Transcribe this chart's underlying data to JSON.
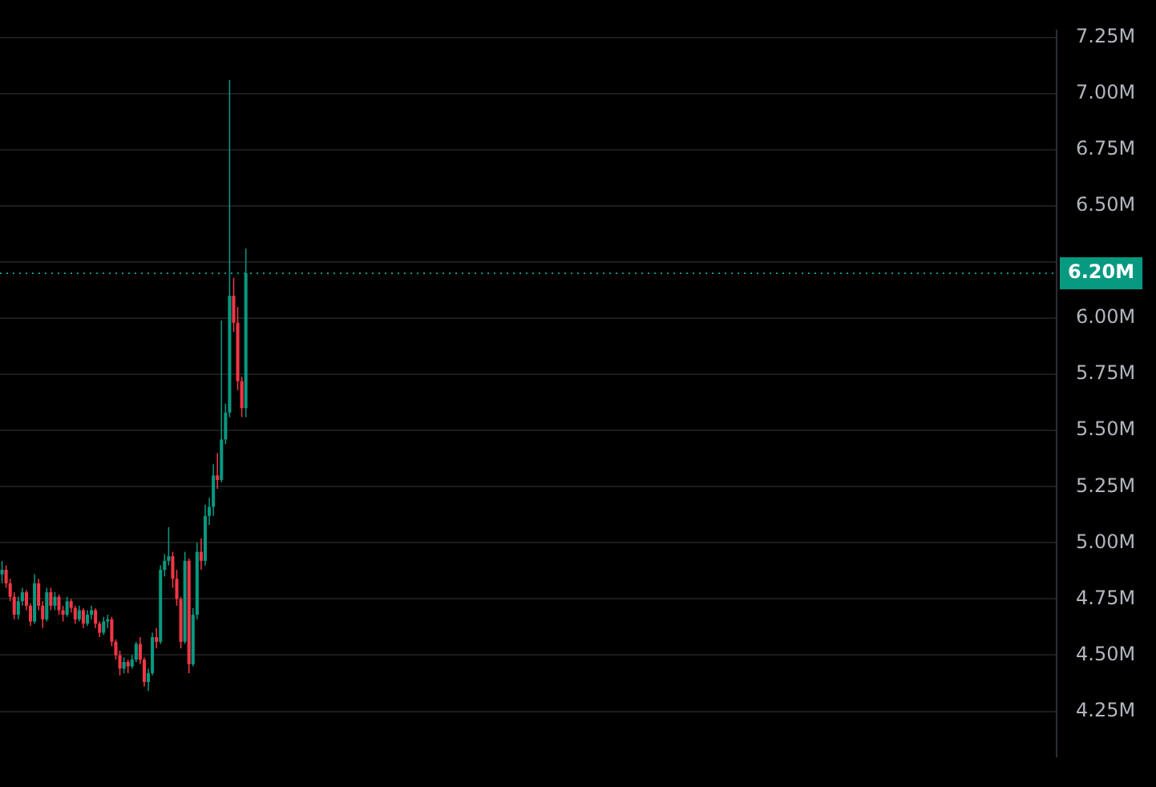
{
  "chart_data": {
    "type": "candlestick",
    "categories": [
      null,
      null,
      null,
      null,
      null,
      null,
      null,
      null,
      null,
      null,
      null,
      null,
      null,
      null,
      null,
      null,
      null,
      null,
      null,
      null,
      null,
      null,
      null,
      null,
      null,
      null,
      null,
      null,
      null,
      null,
      null,
      null,
      null,
      null,
      null,
      null,
      null,
      null,
      null,
      null,
      null,
      null,
      null,
      null,
      null,
      null,
      null,
      null,
      null,
      null,
      null,
      null,
      null,
      null,
      null,
      null,
      null,
      null,
      null,
      null,
      null,
      null,
      null,
      null,
      null,
      null,
      null,
      null,
      null,
      null,
      null,
      null,
      null,
      null,
      null,
      null,
      null,
      null,
      null,
      null,
      null,
      null,
      null,
      null,
      null,
      null,
      null,
      null,
      null,
      null,
      null,
      null,
      null,
      null,
      null,
      null,
      null,
      null,
      null,
      null,
      null,
      null,
      null,
      null,
      null,
      null,
      null,
      null,
      null,
      null,
      null,
      null,
      null,
      null,
      null,
      null,
      null,
      null,
      null,
      null,
      null,
      null,
      null,
      null,
      null,
      null,
      null,
      null,
      null,
      null,
      null,
      null,
      null,
      null,
      null,
      null,
      null,
      null,
      null,
      null,
      null,
      null,
      null,
      null,
      null,
      null,
      null,
      null,
      null,
      null,
      null,
      null,
      null,
      null,
      null,
      null,
      null,
      null,
      null,
      null,
      null,
      null,
      null,
      null,
      null,
      null,
      null,
      null,
      null,
      null,
      null,
      null,
      null,
      null,
      null,
      null,
      null,
      null,
      null,
      null,
      null,
      null,
      null,
      null,
      null,
      null,
      null,
      null,
      null,
      null,
      null,
      null,
      null,
      null,
      null,
      null,
      null,
      null,
      null,
      null,
      null,
      null,
      null,
      null,
      null,
      null,
      null,
      null,
      null,
      null,
      null,
      null,
      null,
      null,
      null,
      null,
      null,
      null,
      null,
      null,
      null,
      null,
      null,
      null,
      null,
      null,
      null,
      null,
      null,
      null,
      null,
      null,
      null,
      null,
      null,
      null,
      null,
      null,
      null,
      null,
      null,
      null,
      null,
      null,
      null,
      null,
      null,
      null,
      null,
      null,
      null,
      null,
      null,
      null,
      null,
      null,
      null,
      null,
      null,
      null
    ],
    "ohlc": [
      [
        4.86,
        4.92,
        4.82,
        4.88
      ],
      [
        4.88,
        4.9,
        4.8,
        4.82
      ],
      [
        4.82,
        4.84,
        4.74,
        4.76
      ],
      [
        4.76,
        4.78,
        4.66,
        4.68
      ],
      [
        4.68,
        4.76,
        4.66,
        4.74
      ],
      [
        4.74,
        4.8,
        4.72,
        4.78
      ],
      [
        4.78,
        4.79,
        4.7,
        4.72
      ],
      [
        4.72,
        4.73,
        4.63,
        4.65
      ],
      [
        4.65,
        4.86,
        4.64,
        4.82
      ],
      [
        4.82,
        4.84,
        4.7,
        4.72
      ],
      [
        4.72,
        4.74,
        4.62,
        4.66
      ],
      [
        4.66,
        4.8,
        4.65,
        4.78
      ],
      [
        4.78,
        4.8,
        4.7,
        4.72
      ],
      [
        4.72,
        4.78,
        4.7,
        4.76
      ],
      [
        4.76,
        4.77,
        4.68,
        4.7
      ],
      [
        4.7,
        4.72,
        4.65,
        4.68
      ],
      [
        4.68,
        4.76,
        4.67,
        4.74
      ],
      [
        4.74,
        4.75,
        4.69,
        4.71
      ],
      [
        4.71,
        4.72,
        4.64,
        4.66
      ],
      [
        4.66,
        4.72,
        4.65,
        4.7
      ],
      [
        4.7,
        4.71,
        4.62,
        4.64
      ],
      [
        4.64,
        4.7,
        4.63,
        4.68
      ],
      [
        4.68,
        4.72,
        4.66,
        4.7
      ],
      [
        4.7,
        4.71,
        4.62,
        4.64
      ],
      [
        4.64,
        4.65,
        4.58,
        4.6
      ],
      [
        4.6,
        4.67,
        4.59,
        4.65
      ],
      [
        4.65,
        4.68,
        4.62,
        4.66
      ],
      [
        4.66,
        4.67,
        4.54,
        4.56
      ],
      [
        4.56,
        4.57,
        4.48,
        4.5
      ],
      [
        4.5,
        4.52,
        4.41,
        4.44
      ],
      [
        4.44,
        4.49,
        4.42,
        4.47
      ],
      [
        4.47,
        4.48,
        4.42,
        4.45
      ],
      [
        4.45,
        4.5,
        4.44,
        4.48
      ],
      [
        4.48,
        4.56,
        4.47,
        4.55
      ],
      [
        4.55,
        4.58,
        4.46,
        4.48
      ],
      [
        4.48,
        4.49,
        4.36,
        4.38
      ],
      [
        4.38,
        4.44,
        4.34,
        4.42
      ],
      [
        4.42,
        4.6,
        4.41,
        4.58
      ],
      [
        4.58,
        4.62,
        4.53,
        4.56
      ],
      [
        4.56,
        4.9,
        4.55,
        4.88
      ],
      [
        4.88,
        4.95,
        4.85,
        4.92
      ],
      [
        4.92,
        5.07,
        4.9,
        4.94
      ],
      [
        4.94,
        4.96,
        4.8,
        4.84
      ],
      [
        4.84,
        4.88,
        4.72,
        4.75
      ],
      [
        4.75,
        4.76,
        4.53,
        4.56
      ],
      [
        4.56,
        4.96,
        4.55,
        4.92
      ],
      [
        4.92,
        4.93,
        4.42,
        4.46
      ],
      [
        4.46,
        4.71,
        4.45,
        4.68
      ],
      [
        4.68,
        5.0,
        4.66,
        4.96
      ],
      [
        4.96,
        5.02,
        4.88,
        4.92
      ],
      [
        4.92,
        5.17,
        4.9,
        5.12
      ],
      [
        5.12,
        5.2,
        5.08,
        5.16
      ],
      [
        5.16,
        5.35,
        5.12,
        5.3
      ],
      [
        5.3,
        5.4,
        5.24,
        5.28
      ],
      [
        5.28,
        5.99,
        5.27,
        5.46
      ],
      [
        5.46,
        5.62,
        5.44,
        5.58
      ],
      [
        5.58,
        7.06,
        5.56,
        6.1
      ],
      [
        6.1,
        6.18,
        5.94,
        5.98
      ],
      [
        5.98,
        6.05,
        5.68,
        5.72
      ],
      [
        5.72,
        5.74,
        5.56,
        5.6
      ],
      [
        5.6,
        6.31,
        5.56,
        6.2
      ],
      null,
      null,
      null,
      null,
      null,
      null,
      null,
      null,
      null,
      null,
      null,
      null,
      null,
      null,
      null,
      null,
      null,
      null,
      null,
      null,
      null,
      null,
      null,
      null,
      null,
      null,
      null,
      null,
      null,
      null,
      null,
      null,
      null,
      null,
      null,
      null,
      null,
      null,
      null,
      null,
      null,
      null,
      null,
      null,
      null,
      null,
      null,
      null,
      null,
      null,
      null,
      null,
      null,
      null,
      null,
      null,
      null,
      null,
      null,
      null,
      null,
      null,
      null,
      null,
      null,
      null,
      null,
      null,
      null,
      null,
      null,
      null,
      null,
      null,
      null,
      null,
      null,
      null,
      null,
      null,
      null,
      null,
      null,
      null,
      null,
      null,
      null,
      null,
      null,
      null,
      null,
      null,
      null,
      null,
      null,
      null,
      null,
      null,
      null,
      null,
      null,
      null,
      null,
      null,
      null,
      null,
      null,
      null,
      null,
      null,
      null,
      null,
      null,
      null,
      null,
      null,
      null,
      null,
      null,
      null,
      null,
      null,
      null,
      null,
      null,
      null,
      null,
      null,
      null,
      null,
      null,
      null,
      null,
      null,
      null,
      null,
      null,
      null,
      null,
      null,
      null,
      null,
      null,
      null,
      null,
      null,
      null,
      null,
      null,
      null,
      null,
      null,
      null,
      null,
      null,
      null,
      null,
      null,
      null,
      null,
      null,
      null,
      null,
      null,
      null,
      null,
      null,
      null,
      null,
      null,
      null,
      null,
      null,
      null,
      null,
      null,
      null,
      null,
      null,
      null,
      null,
      null,
      null,
      null,
      null,
      null,
      null,
      null,
      null,
      null,
      null,
      null,
      null,
      null,
      null,
      null,
      null,
      null,
      null
    ],
    "colors": [
      "#089981",
      "#f23645",
      "#f23645",
      "#f23645",
      "#089981",
      "#089981",
      "#f23645",
      "#f23645",
      "#089981",
      "#f23645",
      "#f23645",
      "#089981",
      "#f23645",
      "#089981",
      "#f23645",
      "#f23645",
      "#089981",
      "#f23645",
      "#f23645",
      "#089981",
      "#f23645",
      "#089981",
      "#089981",
      "#f23645",
      "#f23645",
      "#089981",
      "#089981",
      "#f23645",
      "#f23645",
      "#f23645",
      "#089981",
      "#f23645",
      "#089981",
      "#089981",
      "#f23645",
      "#f23645",
      "#089981",
      "#089981",
      "#f23645",
      "#089981",
      "#089981",
      "#089981",
      "#f23645",
      "#f23645",
      "#f23645",
      "#089981",
      "#f23645",
      "#089981",
      "#089981",
      "#f23645",
      "#089981",
      "#089981",
      "#089981",
      "#f23645",
      "#089981",
      "#089981",
      "#089981",
      "#f23645",
      "#f23645",
      "#f23645",
      "#089981",
      null,
      null,
      null,
      null,
      null,
      null,
      null,
      null,
      null,
      null,
      null,
      null,
      null,
      null,
      null,
      null,
      null,
      null,
      null,
      null,
      null,
      null,
      null,
      null,
      null,
      null,
      null,
      null,
      null,
      null,
      null,
      null,
      null,
      null,
      null,
      null,
      null,
      null,
      null,
      null,
      null,
      null,
      null,
      null,
      null,
      null,
      null,
      null,
      null,
      null,
      null,
      null,
      null,
      null,
      null,
      null,
      null,
      null,
      null,
      null,
      null,
      null,
      null,
      null,
      null,
      null,
      null,
      null,
      null,
      null,
      null,
      null,
      null,
      null,
      null,
      null,
      null,
      null,
      null,
      null,
      null,
      null,
      null,
      null,
      null,
      null,
      null,
      null,
      null,
      null,
      null,
      null,
      null,
      null,
      null,
      null,
      null,
      null,
      null,
      null,
      null,
      null,
      null,
      null,
      null,
      null,
      null,
      null,
      null,
      null,
      null,
      null,
      null,
      null,
      null,
      null,
      null,
      null,
      null,
      null,
      null,
      null,
      null,
      null,
      null,
      null,
      null,
      null,
      null,
      null,
      null,
      null,
      null,
      null,
      null,
      null,
      null,
      null,
      null,
      null,
      null,
      null,
      null,
      null,
      null,
      null,
      null,
      null,
      null,
      null,
      null,
      null,
      null,
      null,
      null,
      null,
      null,
      null,
      null,
      null,
      null,
      null,
      null,
      null,
      null,
      null,
      null,
      null,
      null,
      null,
      null,
      null,
      null,
      null,
      null,
      null,
      null,
      null,
      null,
      null,
      null,
      null,
      null,
      null,
      null,
      null,
      null,
      null,
      null,
      null,
      null,
      null,
      null,
      null,
      null,
      null,
      null,
      null,
      null
    ],
    "ylim": [
      4.05,
      7.28
    ],
    "yticks": [
      {
        "value": 4.25,
        "label": "4.25M"
      },
      {
        "value": 4.5,
        "label": "4.50M"
      },
      {
        "value": 4.75,
        "label": "4.75M"
      },
      {
        "value": 5.0,
        "label": "5.00M"
      },
      {
        "value": 5.25,
        "label": "5.25M"
      },
      {
        "value": 5.5,
        "label": "5.50M"
      },
      {
        "value": 5.75,
        "label": "5.75M"
      },
      {
        "value": 6.0,
        "label": "6.00M"
      },
      {
        "value": 6.25,
        "label": null
      },
      {
        "value": 6.5,
        "label": "6.50M"
      },
      {
        "value": 6.75,
        "label": "6.75M"
      },
      {
        "value": 7.0,
        "label": "7.00M"
      },
      {
        "value": 7.25,
        "label": "7.25M"
      }
    ],
    "ref_lines": [
      {
        "axis": "y",
        "value": 6.2,
        "label": "6.20M",
        "color": "#089981",
        "line_style": "dotted"
      }
    ],
    "grid": "y",
    "tick_labels": "y",
    "legend": false
  }
}
